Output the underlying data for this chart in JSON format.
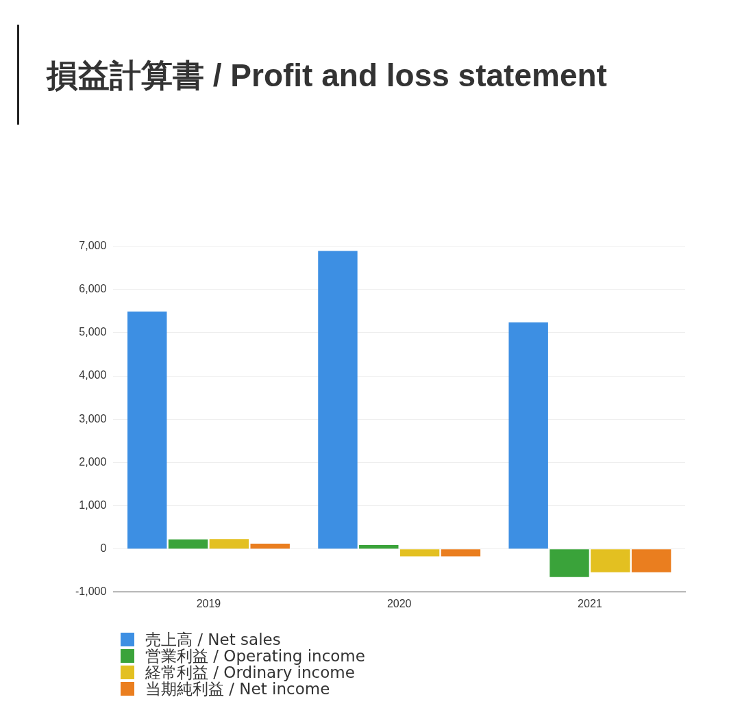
{
  "chart_data": {
    "type": "bar",
    "title": "損益計算書 / Profit and loss statement",
    "categories": [
      "2019",
      "2020",
      "2021"
    ],
    "series": [
      {
        "name": "売上高 / Net sales",
        "color": "#3d8fe3",
        "values": [
          5490,
          6890,
          5240
        ]
      },
      {
        "name": "営業利益 / Operating income",
        "color": "#3aa33a",
        "values": [
          220,
          90,
          -650
        ]
      },
      {
        "name": "経常利益 / Ordinary income",
        "color": "#e3c021",
        "values": [
          230,
          -170,
          -540
        ]
      },
      {
        "name": "当期純利益 / Net income",
        "color": "#ea7e1f",
        "values": [
          120,
          -170,
          -540
        ]
      }
    ],
    "ylim": [
      -1000,
      7000
    ],
    "yticks": [
      {
        "value": -1000,
        "label": "-1,000"
      },
      {
        "value": 0,
        "label": "0"
      },
      {
        "value": 1000,
        "label": "1,000"
      },
      {
        "value": 2000,
        "label": "2,000"
      },
      {
        "value": 3000,
        "label": "3,000"
      },
      {
        "value": 4000,
        "label": "4,000"
      },
      {
        "value": 5000,
        "label": "5,000"
      },
      {
        "value": 6000,
        "label": "6,000"
      },
      {
        "value": 7000,
        "label": "7,000"
      }
    ],
    "grid": "y",
    "legend": "bottom left"
  }
}
